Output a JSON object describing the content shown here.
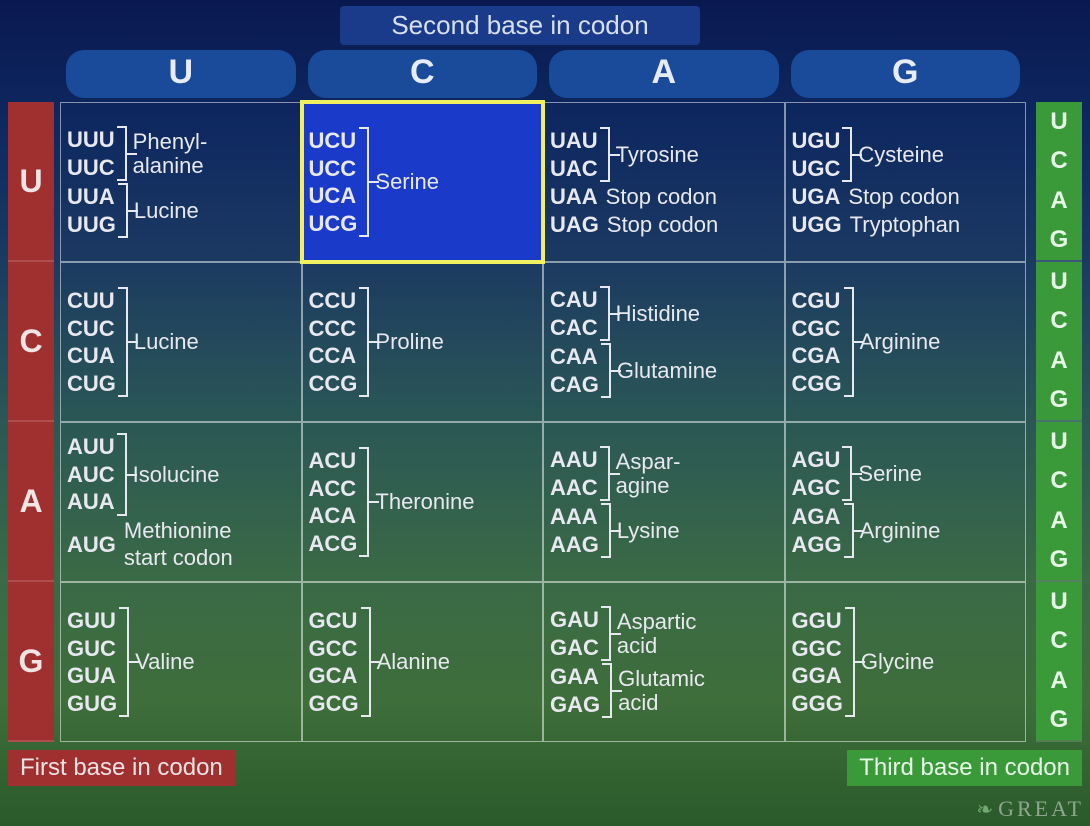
{
  "title": "Second base in codon",
  "first_base_label": "First base in codon",
  "third_base_label": "Third base in codon",
  "watermark": "GREAT",
  "col_headers": [
    "U",
    "C",
    "A",
    "G"
  ],
  "row_headers": [
    "U",
    "C",
    "A",
    "G"
  ],
  "third_base_letters": [
    "U",
    "C",
    "A",
    "G"
  ],
  "colors": {
    "header_bg": "#1a3a8a",
    "col_head_bg": "#1a4a9a",
    "left_rail_bg": "#a03030",
    "right_rail_bg": "#3a9a3a",
    "highlight_bg": "#1a3aca",
    "highlight_border": "#f0f060",
    "text": "#e8e8f0",
    "grid_line": "rgba(255,255,255,0.5)"
  },
  "highlight_cell": [
    0,
    1
  ],
  "table": [
    [
      {
        "groups": [
          {
            "codons": [
              "UUU",
              "UUC"
            ],
            "aa": "Phenyl-\nalanine"
          },
          {
            "codons": [
              "UUA",
              "UUG"
            ],
            "aa": "Lucine"
          }
        ]
      },
      {
        "groups": [
          {
            "codons": [
              "UCU",
              "UCC",
              "UCA",
              "UCG"
            ],
            "aa": "Serine"
          }
        ]
      },
      {
        "groups": [
          {
            "codons": [
              "UAU",
              "UAC"
            ],
            "aa": "Tyrosine"
          }
        ],
        "singles": [
          {
            "codon": "UAA",
            "aa": "Stop codon"
          },
          {
            "codon": "UAG",
            "aa": "Stop codon"
          }
        ]
      },
      {
        "groups": [
          {
            "codons": [
              "UGU",
              "UGC"
            ],
            "aa": "Cysteine"
          }
        ],
        "singles": [
          {
            "codon": "UGA",
            "aa": "Stop codon"
          },
          {
            "codon": "UGG",
            "aa": "Tryptophan"
          }
        ]
      }
    ],
    [
      {
        "groups": [
          {
            "codons": [
              "CUU",
              "CUC",
              "CUA",
              "CUG"
            ],
            "aa": "Lucine"
          }
        ]
      },
      {
        "groups": [
          {
            "codons": [
              "CCU",
              "CCC",
              "CCA",
              "CCG"
            ],
            "aa": "Proline"
          }
        ]
      },
      {
        "groups": [
          {
            "codons": [
              "CAU",
              "CAC"
            ],
            "aa": "Histidine"
          },
          {
            "codons": [
              "CAA",
              "CAG"
            ],
            "aa": "Glutamine"
          }
        ]
      },
      {
        "groups": [
          {
            "codons": [
              "CGU",
              "CGC",
              "CGA",
              "CGG"
            ],
            "aa": "Arginine"
          }
        ]
      }
    ],
    [
      {
        "groups": [
          {
            "codons": [
              "AUU",
              "AUC",
              "AUA"
            ],
            "aa": "Isolucine"
          }
        ],
        "singles": [
          {
            "codon": "AUG",
            "aa": "Methionine\nstart codon"
          }
        ]
      },
      {
        "groups": [
          {
            "codons": [
              "ACU",
              "ACC",
              "ACA",
              "ACG"
            ],
            "aa": "Theronine"
          }
        ]
      },
      {
        "groups": [
          {
            "codons": [
              "AAU",
              "AAC"
            ],
            "aa": "Aspar-\nagine"
          },
          {
            "codons": [
              "AAA",
              "AAG"
            ],
            "aa": "Lysine"
          }
        ]
      },
      {
        "groups": [
          {
            "codons": [
              "AGU",
              "AGC"
            ],
            "aa": "Serine"
          },
          {
            "codons": [
              "AGA",
              "AGG"
            ],
            "aa": "Arginine"
          }
        ]
      }
    ],
    [
      {
        "groups": [
          {
            "codons": [
              "GUU",
              "GUC",
              "GUA",
              "GUG"
            ],
            "aa": "Valine"
          }
        ]
      },
      {
        "groups": [
          {
            "codons": [
              "GCU",
              "GCC",
              "GCA",
              "GCG"
            ],
            "aa": "Alanine"
          }
        ]
      },
      {
        "groups": [
          {
            "codons": [
              "GAU",
              "GAC"
            ],
            "aa": "Aspartic\nacid"
          },
          {
            "codons": [
              "GAA",
              "GAG"
            ],
            "aa": "Glutamic\nacid"
          }
        ]
      },
      {
        "groups": [
          {
            "codons": [
              "GGU",
              "GGC",
              "GGA",
              "GGG"
            ],
            "aa": "Glycine"
          }
        ]
      }
    ]
  ]
}
